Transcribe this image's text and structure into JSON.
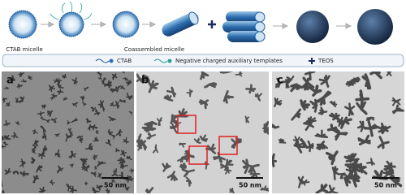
{
  "schematic": {
    "labels": [
      "CTAB micelle",
      "Coassembled micelle"
    ]
  },
  "legend": {
    "items": [
      "CTAB",
      "Negative charged auxiliary templates",
      "TEOS"
    ]
  },
  "panels": [
    {
      "label": "a",
      "scale_bar": "50 nm"
    },
    {
      "label": "b",
      "scale_bar": "50 nm"
    },
    {
      "label": "c",
      "scale_bar": "50 nm"
    }
  ]
}
